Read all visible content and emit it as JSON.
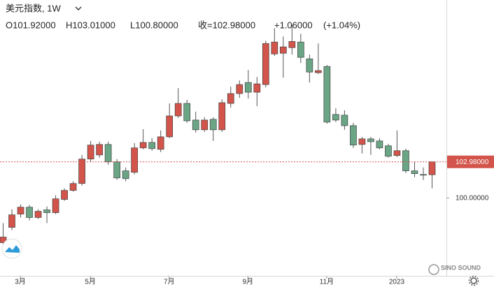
{
  "chart_data": {
    "type": "candlestick",
    "title": "美元指数, 1W",
    "ohlc_legend": [
      "O101.92000",
      "H103.01000",
      "L100.80000",
      "收=102.98000",
      "+1.06000",
      "(+1.04%)"
    ],
    "categories": [
      null,
      null,
      "3月",
      null,
      null,
      null,
      null,
      null,
      null,
      null,
      "5月",
      null,
      null,
      null,
      null,
      null,
      null,
      null,
      null,
      "7月",
      null,
      null,
      null,
      null,
      null,
      null,
      null,
      null,
      "9月",
      null,
      null,
      null,
      null,
      null,
      null,
      null,
      null,
      "11月",
      null,
      null,
      null,
      null,
      null,
      null,
      null,
      "2023",
      null,
      null,
      null,
      null
    ],
    "open": [
      96.33,
      97.59,
      98.68,
      99.25,
      98.4,
      99.03,
      98.8,
      99.89,
      100.63,
      101.2,
      103.21,
      103.55,
      104.41,
      102.98,
      102.24,
      102.12,
      104.13,
      104.58,
      104.01,
      105.04,
      106.76,
      107.79,
      106.42,
      105.62,
      106.48,
      105.62,
      107.79,
      108.6,
      109.51,
      108.71,
      109.34,
      111.86,
      111.92,
      112.38,
      112.84,
      111.46,
      110.32,
      110.83,
      106.88,
      106.82,
      105.96,
      104.41,
      104.87,
      104.7,
      104.3,
      103.5,
      103.9,
      102.24,
      101.94,
      101.92
    ],
    "high": [
      97.94,
      99.08,
      99.48,
      99.43,
      99.08,
      99.31,
      100.23,
      100.8,
      101.38,
      103.55,
      104.7,
      104.64,
      104.64,
      103.21,
      102.52,
      104.53,
      105.67,
      104.93,
      105.56,
      107.79,
      109.05,
      108.08,
      107.11,
      106.65,
      106.65,
      108.14,
      109.17,
      109.68,
      110.54,
      109.97,
      112.95,
      113.98,
      113.3,
      114.27,
      113.52,
      111.81,
      112.72,
      110.95,
      107.39,
      107.22,
      106.19,
      105.04,
      105.04,
      104.93,
      104.47,
      105.56,
      104.07,
      102.98,
      102.52,
      103.01
    ],
    "low": [
      96.22,
      97.36,
      98.4,
      98.17,
      98.28,
      97.94,
      98.68,
      99.77,
      100.52,
      101.03,
      102.98,
      103.32,
      102.75,
      101.49,
      101.38,
      101.95,
      104.01,
      103.9,
      103.78,
      104.93,
      106.59,
      106.19,
      105.39,
      105.44,
      104.7,
      105.44,
      107.45,
      108.25,
      108.19,
      107.56,
      109.11,
      111.69,
      109.91,
      111.81,
      111.12,
      109.51,
      110.2,
      106.13,
      106.25,
      105.62,
      104.13,
      103.67,
      103.55,
      104.01,
      103.32,
      103.38,
      102.06,
      101.72,
      101.49,
      100.8
    ],
    "close": [
      96.79,
      98.62,
      99.25,
      98.4,
      98.91,
      98.8,
      99.94,
      100.63,
      101.2,
      103.21,
      104.36,
      104.41,
      102.98,
      101.66,
      101.6,
      104.13,
      104.58,
      104.07,
      105.04,
      106.76,
      107.79,
      106.36,
      105.62,
      106.42,
      105.62,
      107.85,
      108.6,
      109.34,
      108.71,
      109.4,
      112.72,
      112.84,
      112.44,
      112.89,
      111.58,
      110.37,
      110.49,
      106.25,
      106.42,
      105.96,
      104.36,
      104.87,
      104.64,
      104.13,
      103.44,
      103.9,
      102.24,
      102.01,
      101.89,
      102.98
    ],
    "up_color": "#d2544a",
    "down_color": "#6aa585",
    "ylim": [
      93.6,
      116.3
    ],
    "yticks": [
      {
        "value": 100,
        "label": "100.00000"
      }
    ],
    "last_price": {
      "value": 102.98,
      "label": "102.98000"
    },
    "last_price_color": "#d2544a",
    "watermark": "SINO SOUND"
  }
}
